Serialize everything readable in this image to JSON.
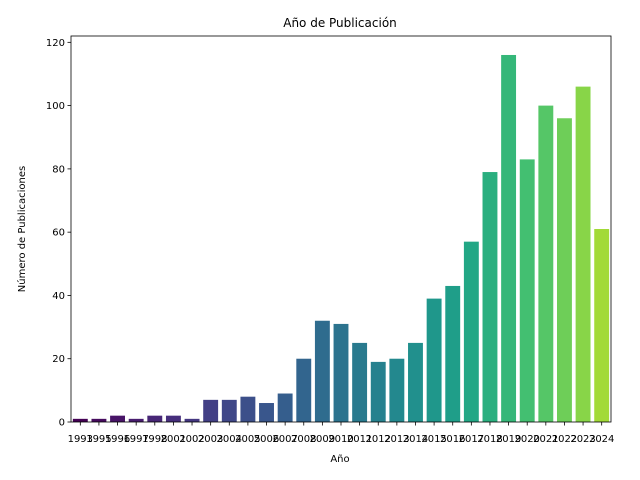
{
  "chart_data": {
    "type": "bar",
    "title": "Año de Publicación",
    "xlabel": "Año",
    "ylabel": "Número de Publicaciones",
    "ylim": [
      0,
      122
    ],
    "yticks": [
      0,
      20,
      40,
      60,
      80,
      100,
      120
    ],
    "grid": false,
    "categories": [
      "1993",
      "1995",
      "1996",
      "1997",
      "1998",
      "2001",
      "2002",
      "2003",
      "2004",
      "2005",
      "2006",
      "2007",
      "2008",
      "2009",
      "2010",
      "2011",
      "2012",
      "2013",
      "2014",
      "2015",
      "2016",
      "2017",
      "2018",
      "2019",
      "2020",
      "2021",
      "2022",
      "2023",
      "2024"
    ],
    "values": [
      1,
      1,
      2,
      1,
      2,
      2,
      1,
      7,
      7,
      8,
      6,
      9,
      20,
      32,
      31,
      25,
      19,
      20,
      25,
      39,
      43,
      57,
      79,
      116,
      83,
      100,
      96,
      106,
      61
    ],
    "colors": [
      "#440154",
      "#460b5e",
      "#481467",
      "#481d6f",
      "#472676",
      "#462e7c",
      "#443781",
      "#423f85",
      "#3f4788",
      "#3c4f8a",
      "#39568c",
      "#355e8d",
      "#32658e",
      "#2f6c8e",
      "#2c738e",
      "#297a8e",
      "#26818e",
      "#23888e",
      "#21908d",
      "#1f978b",
      "#1f9e89",
      "#22a785",
      "#2aaf7f",
      "#35b779",
      "#43bf71",
      "#55c667",
      "#6ece58",
      "#88d548",
      "#a2da37"
    ]
  }
}
